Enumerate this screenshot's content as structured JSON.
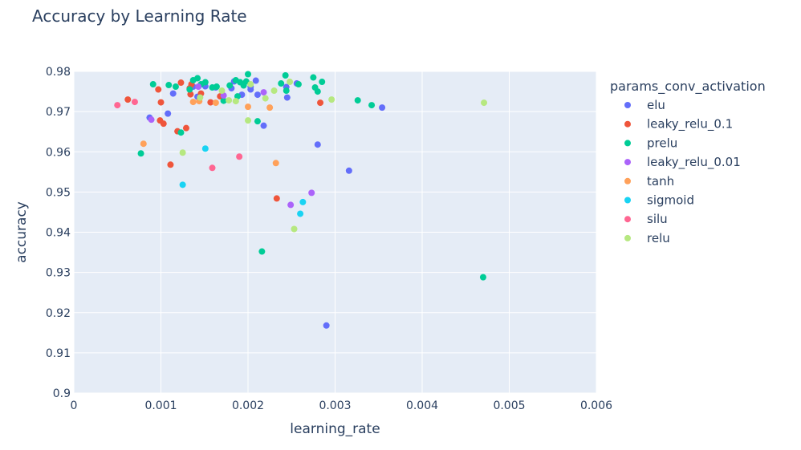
{
  "chart_data": {
    "type": "scatter",
    "title": "Accuracy by Learning Rate",
    "xlabel": "learning_rate",
    "ylabel": "accuracy",
    "xlim": [
      0,
      0.006
    ],
    "ylim": [
      0.9,
      0.98
    ],
    "x_ticks": [
      0,
      0.001,
      0.002,
      0.003,
      0.004,
      0.005,
      0.006
    ],
    "x_tick_labels": [
      "0",
      "0.001",
      "0.002",
      "0.003",
      "0.004",
      "0.005",
      "0.006"
    ],
    "y_ticks": [
      0.9,
      0.91,
      0.92,
      0.93,
      0.94,
      0.95,
      0.96,
      0.97,
      0.98
    ],
    "y_tick_labels": [
      "0.9",
      "0.91",
      "0.92",
      "0.93",
      "0.94",
      "0.95",
      "0.96",
      "0.97",
      "0.98"
    ],
    "grid": true,
    "plot_background": "#e5ecf6",
    "legend_title": "params_conv_activation",
    "legend_position": "right",
    "series": [
      {
        "name": "elu",
        "color": "#636efa",
        "points": [
          [
            0.00087,
            0.9685
          ],
          [
            0.00108,
            0.9695
          ],
          [
            0.00114,
            0.9745
          ],
          [
            0.00142,
            0.9737
          ],
          [
            0.00151,
            0.9763
          ],
          [
            0.00163,
            0.976
          ],
          [
            0.00181,
            0.9758
          ],
          [
            0.00193,
            0.9742
          ],
          [
            0.00203,
            0.9755
          ],
          [
            0.00209,
            0.9777
          ],
          [
            0.00211,
            0.9742
          ],
          [
            0.00218,
            0.9665
          ],
          [
            0.00244,
            0.9761
          ],
          [
            0.00245,
            0.9735
          ],
          [
            0.00256,
            0.977
          ],
          [
            0.0028,
            0.9618
          ],
          [
            0.00316,
            0.9553
          ],
          [
            0.00354,
            0.971
          ],
          [
            0.0029,
            0.9168
          ],
          [
            0.00137,
            0.9762
          ],
          [
            0.00203,
            0.9762
          ],
          [
            0.00184,
            0.9775
          ]
        ]
      },
      {
        "name": "leaky_relu_0.1",
        "color": "#ef553b",
        "points": [
          [
            0.00062,
            0.973
          ],
          [
            0.00097,
            0.9755
          ],
          [
            0.00099,
            0.9678
          ],
          [
            0.001,
            0.9723
          ],
          [
            0.00103,
            0.967
          ],
          [
            0.00111,
            0.9568
          ],
          [
            0.00119,
            0.9651
          ],
          [
            0.00123,
            0.9772
          ],
          [
            0.00129,
            0.9659
          ],
          [
            0.00134,
            0.9743
          ],
          [
            0.00135,
            0.9768
          ],
          [
            0.00146,
            0.9745
          ],
          [
            0.00157,
            0.9723
          ],
          [
            0.00168,
            0.9738
          ],
          [
            0.00233,
            0.9484
          ],
          [
            0.00283,
            0.9722
          ],
          [
            0.00133,
            0.9758
          ]
        ]
      },
      {
        "name": "prelu",
        "color": "#00cc96",
        "points": [
          [
            0.00077,
            0.9596
          ],
          [
            0.00091,
            0.9768
          ],
          [
            0.00109,
            0.9766
          ],
          [
            0.00117,
            0.9762
          ],
          [
            0.00123,
            0.9648
          ],
          [
            0.00133,
            0.9755
          ],
          [
            0.00137,
            0.9778
          ],
          [
            0.00142,
            0.9783
          ],
          [
            0.00146,
            0.9768
          ],
          [
            0.00151,
            0.9773
          ],
          [
            0.00159,
            0.976
          ],
          [
            0.00164,
            0.9762
          ],
          [
            0.00172,
            0.9727
          ],
          [
            0.00179,
            0.9765
          ],
          [
            0.00186,
            0.9778
          ],
          [
            0.00188,
            0.9738
          ],
          [
            0.00191,
            0.9773
          ],
          [
            0.00198,
            0.9775
          ],
          [
            0.002,
            0.9793
          ],
          [
            0.00195,
            0.9765
          ],
          [
            0.00211,
            0.9676
          ],
          [
            0.00216,
            0.9352
          ],
          [
            0.00238,
            0.977
          ],
          [
            0.00243,
            0.979
          ],
          [
            0.00244,
            0.9752
          ],
          [
            0.00258,
            0.9768
          ],
          [
            0.00275,
            0.9785
          ],
          [
            0.00277,
            0.976
          ],
          [
            0.0028,
            0.975
          ],
          [
            0.00285,
            0.9774
          ],
          [
            0.00326,
            0.9728
          ],
          [
            0.00342,
            0.9716
          ],
          [
            0.0047,
            0.9288
          ]
        ]
      },
      {
        "name": "leaky_relu_0.01",
        "color": "#ab63fa",
        "points": [
          [
            0.00089,
            0.968
          ],
          [
            0.00143,
            0.9762
          ],
          [
            0.00172,
            0.974
          ],
          [
            0.00218,
            0.9748
          ],
          [
            0.00249,
            0.9468
          ],
          [
            0.00273,
            0.9498
          ]
        ]
      },
      {
        "name": "tanh",
        "color": "#ffa15a",
        "points": [
          [
            0.0008,
            0.962
          ],
          [
            0.00137,
            0.9724
          ],
          [
            0.00163,
            0.9722
          ],
          [
            0.002,
            0.9712
          ],
          [
            0.00225,
            0.971
          ],
          [
            0.00232,
            0.9572
          ],
          [
            0.00144,
            0.9726
          ]
        ]
      },
      {
        "name": "sigmoid",
        "color": "#19d3f3",
        "points": [
          [
            0.00125,
            0.9518
          ],
          [
            0.00151,
            0.9608
          ],
          [
            0.0026,
            0.9446
          ],
          [
            0.00263,
            0.9475
          ]
        ]
      },
      {
        "name": "silu",
        "color": "#ff6692",
        "points": [
          [
            0.0005,
            0.9716
          ],
          [
            0.0007,
            0.9724
          ],
          [
            0.00159,
            0.956
          ],
          [
            0.0019,
            0.9588
          ]
        ]
      },
      {
        "name": "relu",
        "color": "#b6e880",
        "points": [
          [
            0.00125,
            0.9598
          ],
          [
            0.0017,
            0.9752
          ],
          [
            0.00178,
            0.9728
          ],
          [
            0.00186,
            0.9726
          ],
          [
            0.002,
            0.9678
          ],
          [
            0.00203,
            0.9768
          ],
          [
            0.0022,
            0.9733
          ],
          [
            0.0023,
            0.9752
          ],
          [
            0.00248,
            0.9774
          ],
          [
            0.00253,
            0.9408
          ],
          [
            0.00296,
            0.973
          ],
          [
            0.00471,
            0.9722
          ],
          [
            0.00145,
            0.9735
          ]
        ]
      }
    ]
  }
}
